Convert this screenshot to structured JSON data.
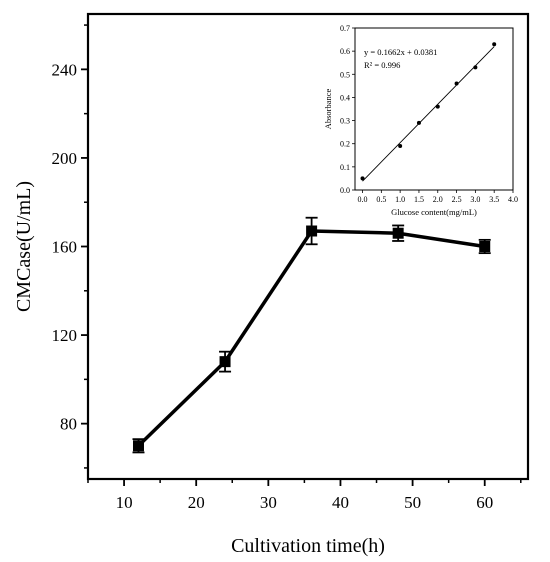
{
  "chart_data": [
    {
      "type": "line",
      "title": "",
      "xlabel": "Cultivation time(h)",
      "ylabel": "CMCase(U/mL)",
      "xlim": [
        5,
        66
      ],
      "ylim": [
        55,
        265
      ],
      "xticks": [
        10,
        20,
        30,
        40,
        50,
        60
      ],
      "yticks": [
        80,
        120,
        160,
        200,
        240
      ],
      "series": [
        {
          "x": [
            12,
            24,
            36,
            48,
            60
          ],
          "values": [
            70,
            108,
            167,
            166,
            160
          ],
          "errors": [
            3,
            4.5,
            6,
            3.5,
            3
          ],
          "marker": "square",
          "color": "#000000"
        }
      ]
    },
    {
      "type": "scatter",
      "title": "",
      "xlabel": "Glucose content(mg/mL)",
      "ylabel": "Absorbance",
      "xlim": [
        -0.2,
        4.0
      ],
      "ylim": [
        0.0,
        0.7
      ],
      "xticks": [
        "0.0",
        "0.5",
        "1.0",
        "1.5",
        "2.0",
        "2.5",
        "3.0",
        "3.5",
        "4.0"
      ],
      "yticks": [
        "0.0",
        "0.1",
        "0.2",
        "0.3",
        "0.4",
        "0.5",
        "0.6",
        "0.7"
      ],
      "series": [
        {
          "x": [
            0,
            1,
            1.5,
            2,
            2.5,
            3,
            3.5
          ],
          "values": [
            0.05,
            0.19,
            0.29,
            0.36,
            0.46,
            0.53,
            0.63
          ],
          "color": "#000000"
        }
      ],
      "fit": {
        "slope": 0.1662,
        "intercept": 0.0381
      },
      "annotations": [
        "y = 0.1662x + 0.0381",
        "R² = 0.996"
      ]
    }
  ]
}
